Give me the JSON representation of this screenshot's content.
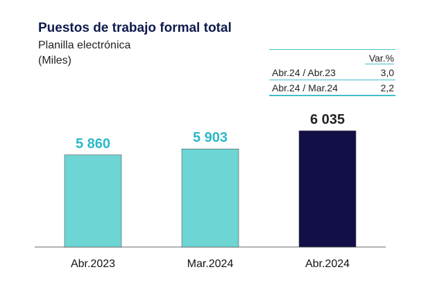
{
  "header": {
    "title": "Puestos de trabajo formal total",
    "subtitle": "Planilla electrónica",
    "units": "(Miles)"
  },
  "variation_table": {
    "header": "Var.%",
    "rows": [
      {
        "label": "Abr.24 / Abr.23",
        "value": "3,0"
      },
      {
        "label": "Abr.24 / Mar.24",
        "value": "2,2"
      }
    ]
  },
  "colors": {
    "teal": "#6dd5d3",
    "teal_label": "#2bb8c8",
    "navy": "#120f46",
    "navy_label": "#222222",
    "axis": "#9a9a9a"
  },
  "chart_data": {
    "type": "bar",
    "categories": [
      "Abr.2023",
      "Mar.2024",
      "Abr.2024"
    ],
    "values": [
      5860,
      5903,
      6035
    ],
    "value_labels": [
      "5 860",
      "5 903",
      "6 035"
    ],
    "bar_colors": [
      "#6dd5d3",
      "#6dd5d3",
      "#120f46"
    ],
    "label_colors": [
      "#2bb8c8",
      "#2bb8c8",
      "#222222"
    ],
    "title": "Puestos de trabajo formal total",
    "xlabel": "",
    "ylabel": "",
    "grid": false,
    "ylim": [
      5190,
      6050
    ]
  }
}
